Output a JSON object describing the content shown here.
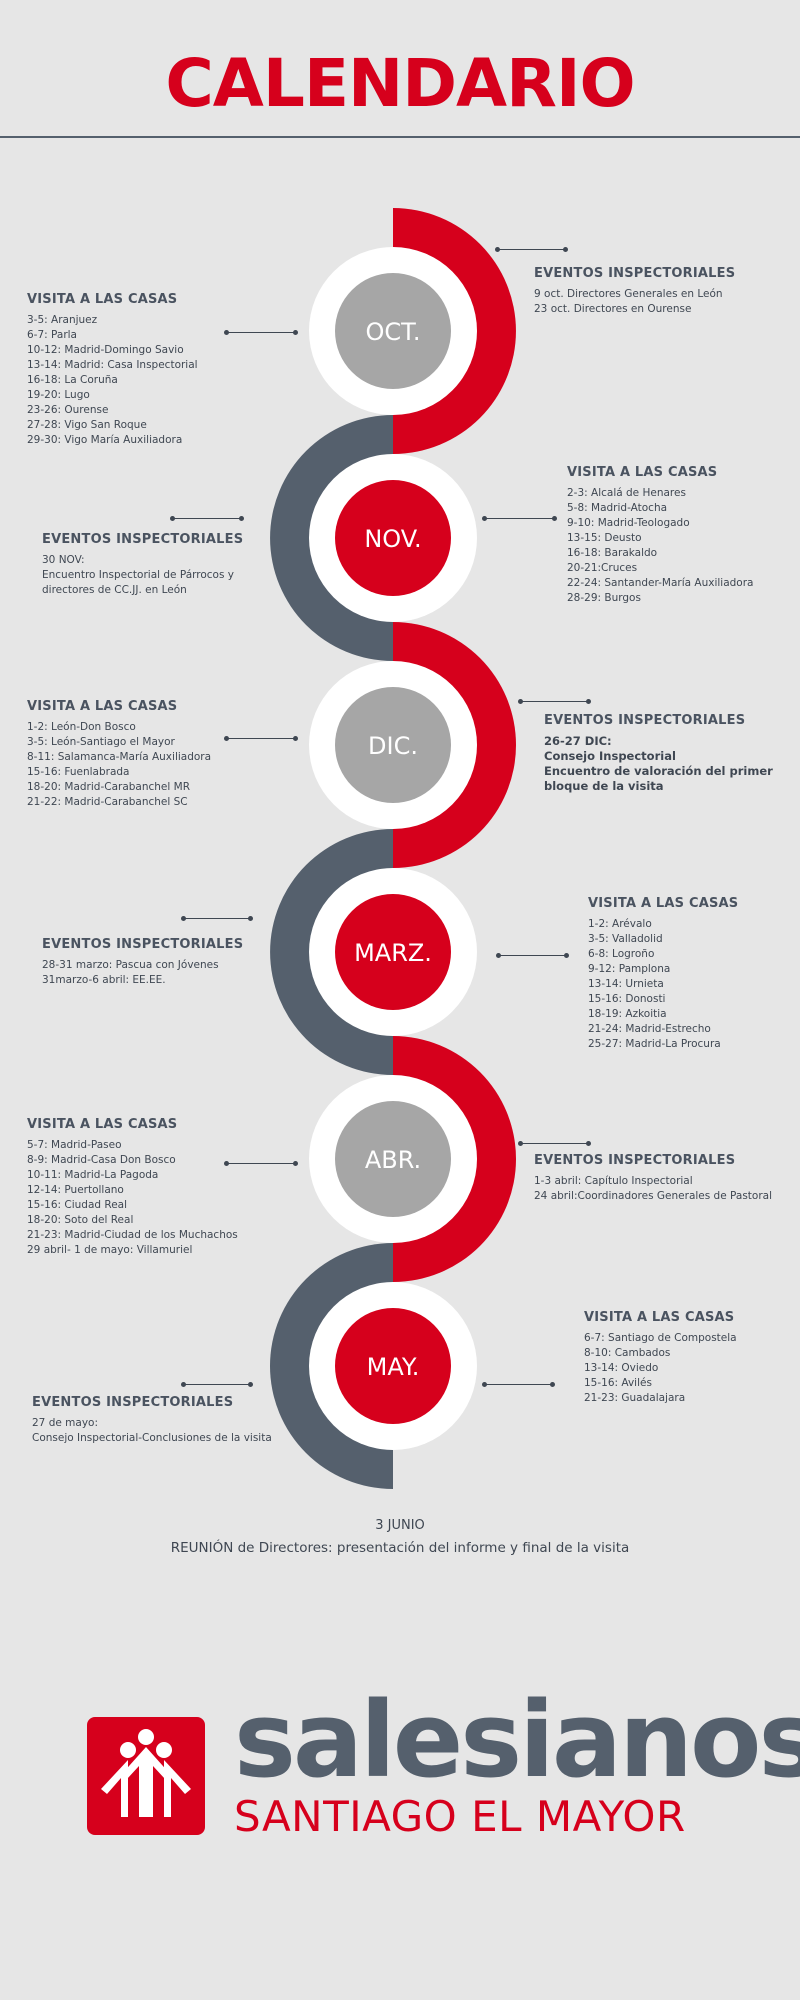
{
  "header": {
    "title": "CALENDARIO"
  },
  "colors": {
    "red": "#d6001c",
    "slate": "#55606d",
    "gray": "#a6a6a6",
    "background": "#e6e6e6"
  },
  "months": [
    {
      "label": "OCT.",
      "inner": "gray",
      "arc": "red",
      "left": {
        "heading": "VISITA A LAS CASAS",
        "bold": false,
        "lines": [
          "3-5: Aranjuez",
          "6-7: Parla",
          "10-12: Madrid-Domingo Savio",
          "13-14: Madrid: Casa Inspectorial",
          "16-18: La Coruña",
          "19-20: Lugo",
          "23-26: Ourense",
          "27-28: Vigo San Roque",
          "29-30: Vigo María Auxiliadora"
        ]
      },
      "right": {
        "heading": "EVENTOS INSPECTORIALES",
        "bold": false,
        "lines": [
          "9 oct. Directores Generales en León",
          "23 oct. Directores en Ourense"
        ]
      }
    },
    {
      "label": "NOV.",
      "inner": "red",
      "arc": "slate",
      "left": {
        "heading": "EVENTOS INSPECTORIALES",
        "bold": false,
        "lines": [
          "30 NOV:",
          "Encuentro Inspectorial de Párrocos y",
          "directores de CC.JJ. en León"
        ]
      },
      "right": {
        "heading": "VISITA A LAS CASAS",
        "bold": false,
        "lines": [
          "2-3: Alcalá de Henares",
          "5-8: Madrid-Atocha",
          "9-10: Madrid-Teologado",
          "13-15: Deusto",
          "16-18: Barakaldo",
          "20-21:Cruces",
          "22-24: Santander-María Auxiliadora",
          "28-29: Burgos"
        ]
      }
    },
    {
      "label": "DIC.",
      "inner": "gray",
      "arc": "red",
      "left": {
        "heading": "VISITA A LAS CASAS",
        "bold": false,
        "lines": [
          "1-2: León-Don Bosco",
          "3-5: León-Santiago el Mayor",
          "8-11: Salamanca-María Auxiliadora",
          "15-16: Fuenlabrada",
          "18-20: Madrid-Carabanchel MR",
          "21-22: Madrid-Carabanchel SC"
        ]
      },
      "right": {
        "heading": "EVENTOS INSPECTORIALES",
        "bold": true,
        "lines": [
          "26-27 DIC:",
          "Consejo Inspectorial",
          "Encuentro de valoración del primer",
          "bloque de la visita"
        ]
      }
    },
    {
      "label": "MARZ.",
      "inner": "red",
      "arc": "slate",
      "left": {
        "heading": "EVENTOS INSPECTORIALES",
        "bold": false,
        "lines": [
          "28-31 marzo: Pascua con Jóvenes",
          "31marzo-6 abril: EE.EE."
        ]
      },
      "right": {
        "heading": "VISITA A LAS CASAS",
        "bold": false,
        "lines": [
          "1-2: Arévalo",
          "3-5: Valladolid",
          "6-8: Logroño",
          "9-12: Pamplona",
          "13-14: Urnieta",
          "15-16: Donosti",
          "18-19: Azkoitia",
          "21-24: Madrid-Estrecho",
          "25-27: Madrid-La Procura"
        ]
      }
    },
    {
      "label": "ABR.",
      "inner": "gray",
      "arc": "red",
      "left": {
        "heading": "VISITA A LAS CASAS",
        "bold": false,
        "lines": [
          "5-7: Madrid-Paseo",
          "8-9: Madrid-Casa Don Bosco",
          "10-11: Madrid-La Pagoda",
          "12-14: Puertollano",
          "15-16: Ciudad Real",
          "18-20: Soto del Real",
          "21-23: Madrid-Ciudad de los Muchachos",
          "29 abril- 1 de mayo: Villamuriel"
        ]
      },
      "right": {
        "heading": "EVENTOS INSPECTORIALES",
        "bold": false,
        "lines": [
          "1-3 abril: Capítulo Inspectorial",
          "24 abril:Coordinadores Generales de Pastoral"
        ]
      }
    },
    {
      "label": "MAY.",
      "inner": "red",
      "arc": "slate",
      "left": {
        "heading": "EVENTOS INSPECTORIALES",
        "bold": false,
        "lines": [
          "27 de mayo:",
          "Consejo Inspectorial-Conclusiones de la visita"
        ]
      },
      "right": {
        "heading": "VISITA A LAS CASAS",
        "bold": false,
        "lines": [
          "6-7: Santiago de Compostela",
          "8-10: Cambados",
          "13-14: Oviedo",
          "15-16: Avilés",
          "21-23: Guadalajara"
        ]
      }
    }
  ],
  "footer": {
    "date": "3 JUNIO",
    "text": "REUNIÓN de Directores: presentación del informe y final de la visita"
  },
  "logo": {
    "icon": "salesian-children-icon",
    "name": "salesianos",
    "subtitle": "SANTIAGO EL MAYOR"
  }
}
